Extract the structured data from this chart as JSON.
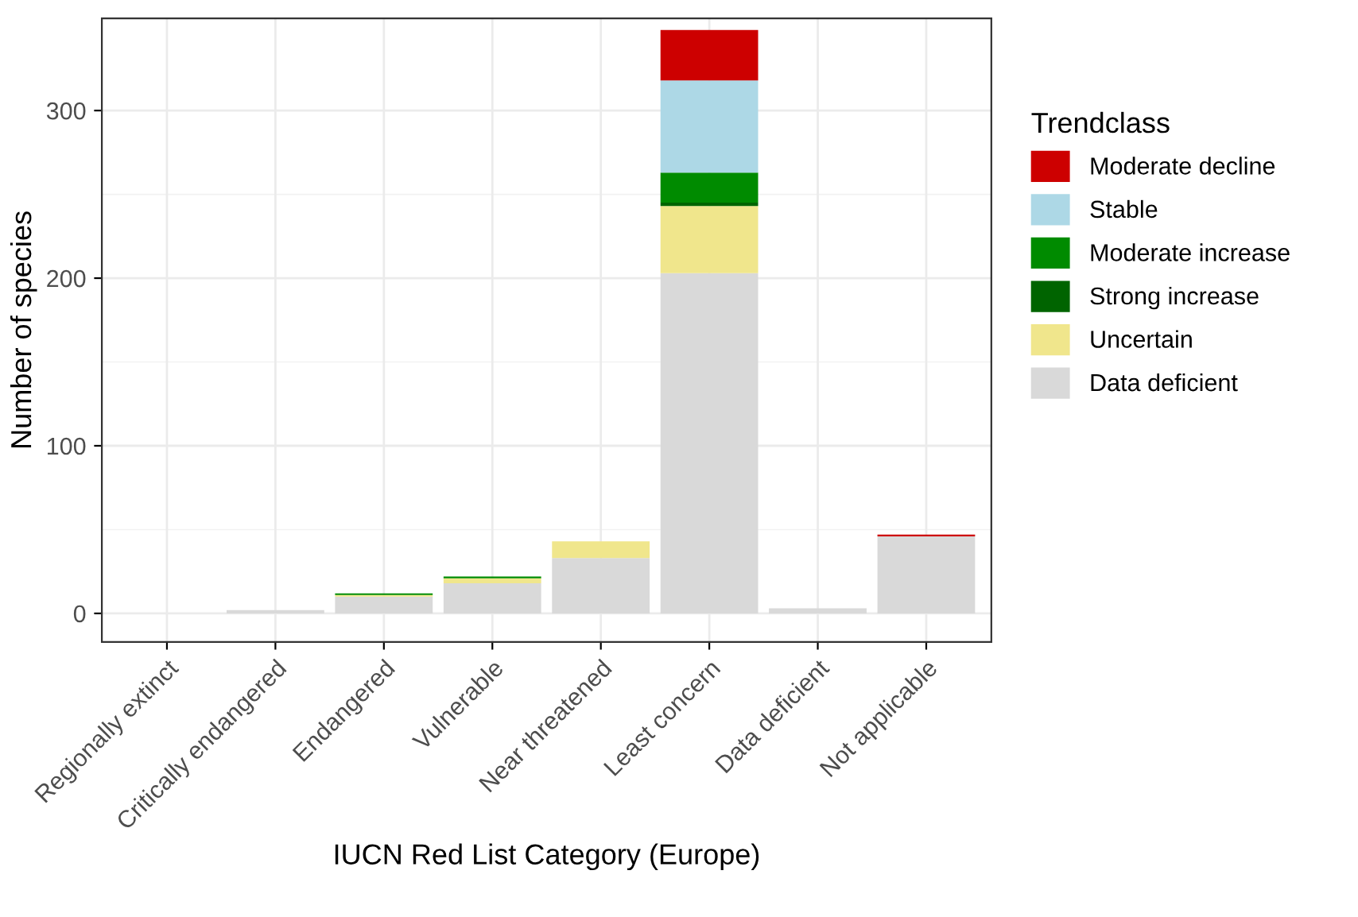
{
  "chart_data": {
    "type": "bar",
    "stacked": true,
    "xlabel": "IUCN Red List Category (Europe)",
    "ylabel": "Number of species",
    "legend_title": "Trendclass",
    "legend": "right",
    "grid": true,
    "categories": [
      "Regionally extinct",
      "Critically endangered",
      "Endangered",
      "Vulnerable",
      "Near threatened",
      "Least concern",
      "Data deficient",
      "Not applicable"
    ],
    "ylim": [
      -17,
      355
    ],
    "yticks": [
      0,
      100,
      200,
      300
    ],
    "series": [
      {
        "name": "Data deficient",
        "color": "#d9d9d9",
        "values": [
          0,
          2,
          10,
          18,
          33,
          203,
          3,
          46
        ]
      },
      {
        "name": "Uncertain",
        "color": "#f0e68c",
        "values": [
          0,
          0,
          1,
          3,
          10,
          40,
          0,
          0
        ]
      },
      {
        "name": "Strong increase",
        "color": "#006400",
        "values": [
          0,
          0,
          0,
          0,
          0,
          2,
          0,
          0
        ]
      },
      {
        "name": "Moderate increase",
        "color": "#008b00",
        "values": [
          0,
          0,
          1,
          1,
          0,
          18,
          0,
          0
        ]
      },
      {
        "name": "Stable",
        "color": "#add8e6",
        "values": [
          0,
          0,
          0,
          0,
          0,
          55,
          0,
          0
        ]
      },
      {
        "name": "Moderate decline",
        "color": "#cd0000",
        "values": [
          0,
          0,
          0,
          0,
          0,
          30,
          0,
          1
        ]
      }
    ]
  }
}
